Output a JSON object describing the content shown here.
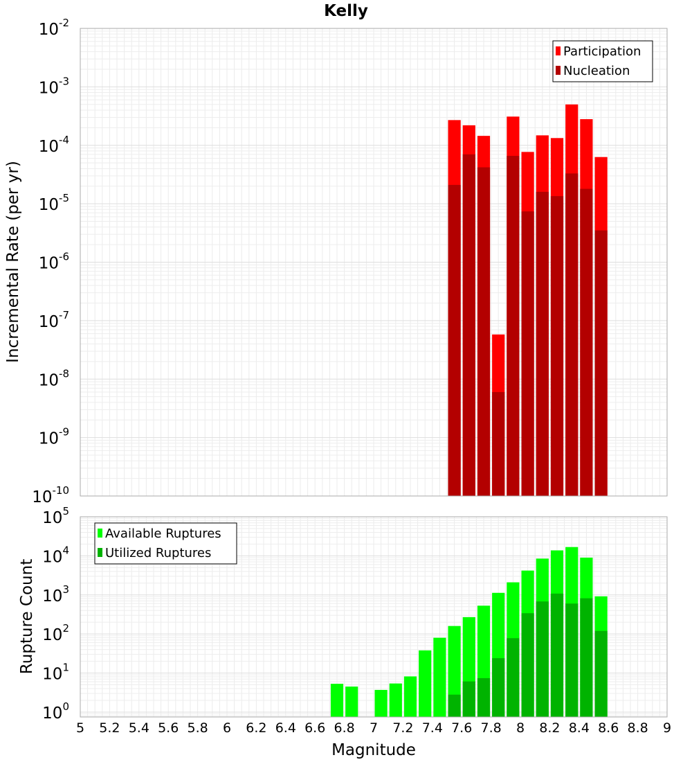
{
  "chart_data": [
    {
      "type": "bar",
      "title": "Kelly",
      "xlabel": "",
      "ylabel": "Incremental Rate (per yr)",
      "yscale": "log",
      "xlim": [
        5,
        9
      ],
      "ylim": [
        1e-10,
        0.01
      ],
      "ytick_exponents": [
        -10,
        -9,
        -8,
        -7,
        -6,
        -5,
        -4,
        -3,
        -2
      ],
      "grid": true,
      "legend_position": "top-right",
      "bar_width": 0.1,
      "x": [
        7.55,
        7.65,
        7.75,
        7.85,
        7.95,
        8.05,
        8.15,
        8.25,
        8.35,
        8.45,
        8.55
      ],
      "series": [
        {
          "name": "Participation",
          "color": "#ff0000",
          "values": [
            0.00027,
            0.00022,
            0.000145,
            5.8e-08,
            0.00031,
            7.7e-05,
            0.000148,
            0.000133,
            0.0005,
            0.00028,
            6.3e-05
          ]
        },
        {
          "name": "Nucleation",
          "color": "#b30000",
          "values": [
            2.1e-05,
            7e-05,
            4.2e-05,
            6e-09,
            6.6e-05,
            7.4e-06,
            1.6e-05,
            1.35e-05,
            3.3e-05,
            1.8e-05,
            3.5e-06
          ]
        }
      ]
    },
    {
      "type": "bar",
      "title": "",
      "xlabel": "Magnitude",
      "ylabel": "Rupture Count",
      "yscale": "log",
      "xlim": [
        5,
        9
      ],
      "ylim": [
        0.75,
        100000.0
      ],
      "ytick_exponents": [
        0,
        1,
        2,
        3,
        4,
        5
      ],
      "xticks": [
        "5",
        "5.2",
        "5.4",
        "5.6",
        "5.8",
        "6",
        "6.2",
        "6.4",
        "6.6",
        "6.8",
        "7",
        "7.2",
        "7.4",
        "7.6",
        "7.8",
        "8",
        "8.2",
        "8.4",
        "8.6",
        "8.8",
        "9"
      ],
      "grid": true,
      "legend_position": "top-left",
      "bar_width": 0.1,
      "x": [
        6.75,
        6.85,
        6.95,
        7.05,
        7.15,
        7.25,
        7.35,
        7.45,
        7.55,
        7.65,
        7.75,
        7.85,
        7.95,
        8.05,
        8.15,
        8.25,
        8.35,
        8.45,
        8.55
      ],
      "series": [
        {
          "name": "Available Ruptures",
          "color": "#00ff00",
          "values": [
            5.3,
            4.5,
            null,
            3.7,
            5.4,
            8.2,
            38,
            80,
            160,
            270,
            530,
            1130,
            2100,
            4200,
            8500,
            13800,
            16800,
            9000,
            920
          ]
        },
        {
          "name": "Utilized Ruptures",
          "color": "#00b300",
          "values": [
            null,
            null,
            null,
            null,
            null,
            null,
            null,
            null,
            2.8,
            6.1,
            7.4,
            24,
            78,
            340,
            680,
            1080,
            600,
            820,
            120
          ]
        }
      ]
    }
  ]
}
